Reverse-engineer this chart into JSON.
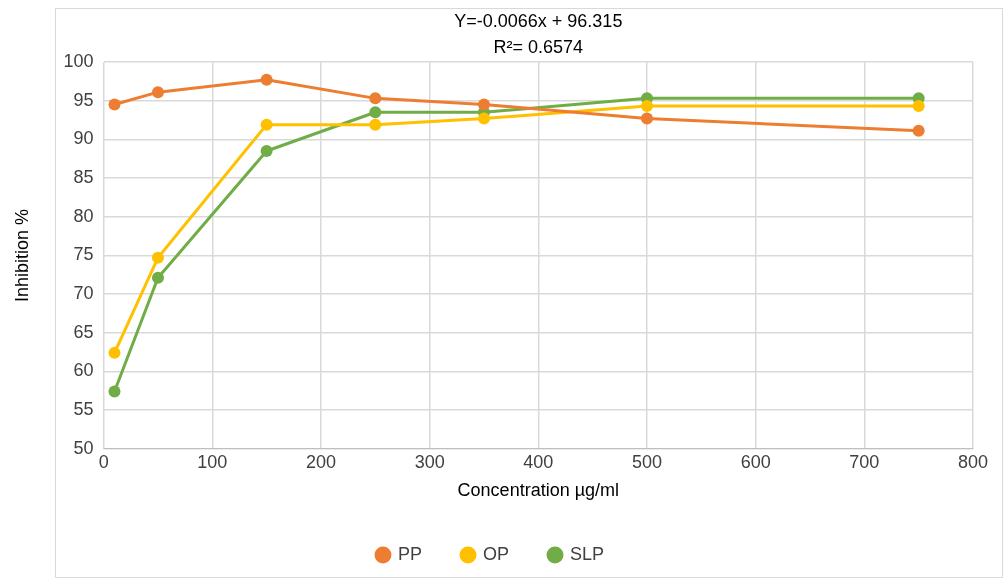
{
  "chart_data": {
    "type": "line",
    "xlabel": "Concentration µg/ml",
    "ylabel": "Inhibition %",
    "annotations": [
      "Y=-0.0066x + 96.315",
      "R²= 0.6574"
    ],
    "x": [
      10,
      50,
      150,
      250,
      350,
      500,
      750
    ],
    "xlim": [
      0,
      800
    ],
    "xticks": [
      0,
      100,
      200,
      300,
      400,
      500,
      600,
      700,
      800
    ],
    "ylim": [
      50,
      100
    ],
    "yticks": [
      50,
      55,
      60,
      65,
      70,
      75,
      80,
      85,
      90,
      95,
      100
    ],
    "grid": true,
    "legend": "bottom",
    "marker": "circle",
    "line_style": "solid",
    "series": [
      {
        "name": "PP",
        "color": "#ed7d31",
        "values": [
          94.5,
          96.1,
          97.7,
          95.3,
          94.5,
          92.7,
          91.1
        ]
      },
      {
        "name": "OP",
        "color": "#ffc000",
        "values": [
          62.4,
          74.7,
          91.9,
          91.9,
          92.7,
          94.3,
          94.3
        ]
      },
      {
        "name": "SLP",
        "color": "#70ad47",
        "values": [
          57.4,
          72.1,
          88.5,
          93.5,
          93.5,
          95.3,
          95.3
        ]
      }
    ]
  }
}
